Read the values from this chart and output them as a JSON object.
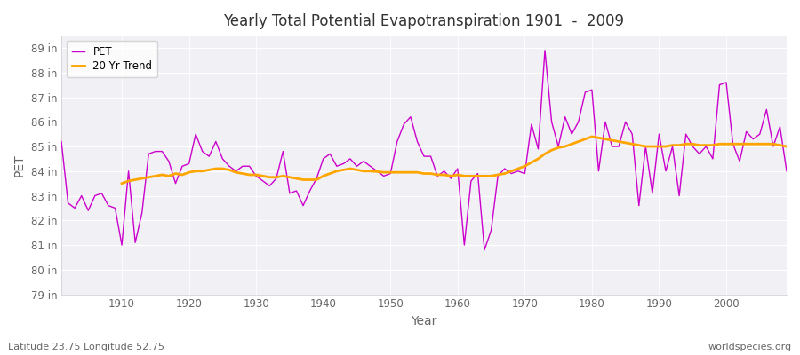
{
  "title": "Yearly Total Potential Evapotranspiration 1901  -  2009",
  "xlabel": "Year",
  "ylabel": "PET",
  "bg_color": "#ffffff",
  "plot_bg_color": "#f0f0f5",
  "pet_color": "#cc00cc",
  "trend_color": "#ffa500",
  "pet_label": "PET",
  "trend_label": "20 Yr Trend",
  "footer_left": "Latitude 23.75 Longitude 52.75",
  "footer_right": "worldspecies.org",
  "ylim": [
    79,
    89.5
  ],
  "yticks": [
    79,
    80,
    81,
    82,
    83,
    84,
    85,
    86,
    87,
    88,
    89
  ],
  "xlim": [
    1901,
    2009
  ],
  "xticks": [
    1910,
    1920,
    1930,
    1940,
    1950,
    1960,
    1970,
    1980,
    1990,
    2000
  ],
  "years": [
    1901,
    1902,
    1903,
    1904,
    1905,
    1906,
    1907,
    1908,
    1909,
    1910,
    1911,
    1912,
    1913,
    1914,
    1915,
    1916,
    1917,
    1918,
    1919,
    1920,
    1921,
    1922,
    1923,
    1924,
    1925,
    1926,
    1927,
    1928,
    1929,
    1930,
    1931,
    1932,
    1933,
    1934,
    1935,
    1936,
    1937,
    1938,
    1939,
    1940,
    1941,
    1942,
    1943,
    1944,
    1945,
    1946,
    1947,
    1948,
    1949,
    1950,
    1951,
    1952,
    1953,
    1954,
    1955,
    1956,
    1957,
    1958,
    1959,
    1960,
    1961,
    1962,
    1963,
    1964,
    1965,
    1966,
    1967,
    1968,
    1969,
    1970,
    1971,
    1972,
    1973,
    1974,
    1975,
    1976,
    1977,
    1978,
    1979,
    1980,
    1981,
    1982,
    1983,
    1984,
    1985,
    1986,
    1987,
    1988,
    1989,
    1990,
    1991,
    1992,
    1993,
    1994,
    1995,
    1996,
    1997,
    1998,
    1999,
    2000,
    2001,
    2002,
    2003,
    2004,
    2005,
    2006,
    2007,
    2008,
    2009
  ],
  "pet_values": [
    85.2,
    82.7,
    82.5,
    83.0,
    82.4,
    83.0,
    83.1,
    82.6,
    82.5,
    81.0,
    84.0,
    81.1,
    82.3,
    84.7,
    84.8,
    84.8,
    84.4,
    83.5,
    84.2,
    84.3,
    85.5,
    84.8,
    84.6,
    85.2,
    84.5,
    84.2,
    84.0,
    84.2,
    84.2,
    83.8,
    83.6,
    83.4,
    83.7,
    84.8,
    83.1,
    83.2,
    82.6,
    83.2,
    83.7,
    84.5,
    84.7,
    84.2,
    84.3,
    84.5,
    84.2,
    84.4,
    84.2,
    84.0,
    83.8,
    83.9,
    85.2,
    85.9,
    86.2,
    85.2,
    84.6,
    84.6,
    83.8,
    84.0,
    83.7,
    84.1,
    81.0,
    83.6,
    83.9,
    80.8,
    81.6,
    83.8,
    84.1,
    83.9,
    84.0,
    83.9,
    85.9,
    84.9,
    88.9,
    86.0,
    85.0,
    86.2,
    85.5,
    86.0,
    87.2,
    87.3,
    84.0,
    86.0,
    85.0,
    85.0,
    86.0,
    85.5,
    82.6,
    85.0,
    83.1,
    85.5,
    84.0,
    85.0,
    83.0,
    85.5,
    85.0,
    84.7,
    85.0,
    84.5,
    87.5,
    87.6,
    85.1,
    84.4,
    85.6,
    85.3,
    85.5,
    86.5,
    85.0,
    85.8,
    84.0
  ],
  "trend_values": [
    null,
    null,
    null,
    null,
    null,
    null,
    null,
    null,
    null,
    83.5,
    83.6,
    83.65,
    83.7,
    83.75,
    83.8,
    83.85,
    83.8,
    83.9,
    83.85,
    83.95,
    84.0,
    84.0,
    84.05,
    84.1,
    84.1,
    84.05,
    83.95,
    83.9,
    83.85,
    83.85,
    83.8,
    83.75,
    83.75,
    83.8,
    83.75,
    83.7,
    83.65,
    83.65,
    83.65,
    83.8,
    83.9,
    84.0,
    84.05,
    84.1,
    84.05,
    84.0,
    84.0,
    83.98,
    83.95,
    83.95,
    83.95,
    83.95,
    83.95,
    83.95,
    83.9,
    83.9,
    83.85,
    83.85,
    83.8,
    83.85,
    83.8,
    83.8,
    83.8,
    83.8,
    83.8,
    83.85,
    83.9,
    84.0,
    84.1,
    84.2,
    84.35,
    84.5,
    84.7,
    84.85,
    84.95,
    85.0,
    85.1,
    85.2,
    85.3,
    85.4,
    85.35,
    85.3,
    85.25,
    85.2,
    85.15,
    85.1,
    85.05,
    85.0,
    85.0,
    85.0,
    85.0,
    85.05,
    85.05,
    85.1,
    85.1,
    85.05,
    85.05,
    85.05,
    85.1,
    85.1,
    85.1,
    85.1,
    85.1,
    85.1,
    85.1,
    85.1,
    85.1,
    85.05,
    85.0
  ]
}
